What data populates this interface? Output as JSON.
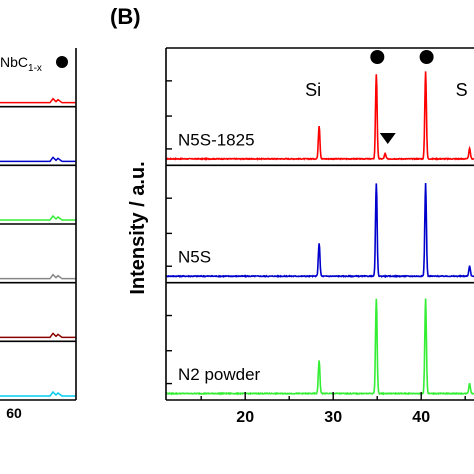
{
  "figure": {
    "panel_label": "(B)",
    "left_legend_text": "NbC",
    "left_legend_subscript": "1-x",
    "left_tick_label": "60"
  },
  "chart_data": {
    "type": "line",
    "title": "",
    "xlabel": "",
    "ylabel": "Intensity / a.u.",
    "xlim": [
      11,
      46
    ],
    "xticks": [
      20,
      30,
      40
    ],
    "legend": "none",
    "grid": false,
    "annotations": [
      {
        "text": "Si",
        "x": 28.4
      },
      {
        "text": "S",
        "x": 45.5
      },
      {
        "marker": "circle",
        "x": 34.9
      },
      {
        "marker": "circle",
        "x": 40.5
      },
      {
        "marker": "triangle-down",
        "x": 36.2
      }
    ],
    "series": [
      {
        "name": "N5S-1825",
        "color": "#ff0000",
        "baseline": 0.02,
        "peaks": [
          {
            "x": 28.4,
            "h": 0.32
          },
          {
            "x": 34.9,
            "h": 0.82
          },
          {
            "x": 35.9,
            "h": 0.05
          },
          {
            "x": 40.5,
            "h": 0.85
          },
          {
            "x": 45.5,
            "h": 0.1
          }
        ]
      },
      {
        "name": "N5S",
        "color": "#0000cc",
        "baseline": 0.02,
        "peaks": [
          {
            "x": 28.4,
            "h": 0.32
          },
          {
            "x": 34.9,
            "h": 0.9
          },
          {
            "x": 40.5,
            "h": 0.9
          },
          {
            "x": 45.5,
            "h": 0.1
          }
        ]
      },
      {
        "name": "N2 powder",
        "color": "#33ee33",
        "baseline": 0.02,
        "peaks": [
          {
            "x": 28.4,
            "h": 0.32
          },
          {
            "x": 34.9,
            "h": 0.92
          },
          {
            "x": 40.5,
            "h": 0.92
          },
          {
            "x": 45.5,
            "h": 0.1
          }
        ]
      }
    ],
    "left_panel": {
      "series_colors": [
        "#ff0000",
        "#0000cc",
        "#33ee33",
        "#888888",
        "#8b0000",
        "#00ccee"
      ]
    }
  }
}
